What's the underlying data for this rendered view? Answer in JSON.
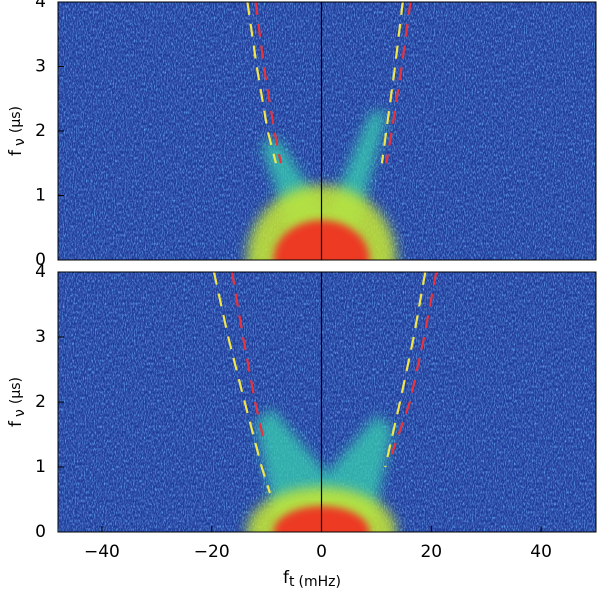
{
  "chart_data": [
    {
      "type": "line",
      "xlim": [
        -48,
        50
      ],
      "ylim": [
        0,
        4
      ],
      "yticks": [
        0,
        1,
        2,
        3,
        4
      ],
      "y_label": {
        "main": "f",
        "sub": "ν",
        "unit": "(μs)"
      },
      "series": [
        {
          "color": "#f2e64a",
          "x": [
            -13.5,
            -11.8,
            -9.8,
            -8.3
          ],
          "y": [
            4,
            3,
            2,
            1.5
          ]
        },
        {
          "color": "#e8323c",
          "x": [
            -12,
            -10.5,
            -8.6,
            -7.4
          ],
          "y": [
            4,
            3,
            2,
            1.5
          ]
        },
        {
          "color": "#f2e64a",
          "x": [
            14.8,
            13.4,
            11.8,
            11
          ],
          "y": [
            4,
            3,
            2,
            1.5
          ]
        },
        {
          "color": "#e8323c",
          "x": [
            16.2,
            14.6,
            12.8,
            11.8
          ],
          "y": [
            4,
            3,
            2,
            1.5
          ]
        }
      ]
    },
    {
      "type": "line",
      "xlim": [
        -48,
        50
      ],
      "ylim": [
        0,
        4
      ],
      "yticks": [
        0,
        1,
        2,
        3,
        4
      ],
      "xticks": [
        {
          "value": -40,
          "label": "−40"
        },
        {
          "value": -20,
          "label": "−20"
        },
        0,
        20,
        40
      ],
      "y_label": {
        "main": "f",
        "sub": "ν",
        "unit": "(μs)"
      },
      "x_label": {
        "main": "f",
        "sub": "t",
        "unit": "(mHz)"
      },
      "series": [
        {
          "color": "#f2e64a",
          "x": [
            -19.6,
            -17,
            -14,
            -10.9,
            -9.4
          ],
          "y": [
            4,
            3,
            2,
            1,
            0.6
          ]
        },
        {
          "color": "#e8323c",
          "x": [
            -16.3,
            -14.3,
            -12.1,
            -10.5
          ],
          "y": [
            4,
            3,
            2,
            1.4
          ]
        },
        {
          "color": "#f2e64a",
          "x": [
            18.9,
            16.8,
            14.3,
            11.6
          ],
          "y": [
            4,
            3,
            2,
            1
          ]
        },
        {
          "color": "#e8323c",
          "x": [
            20.9,
            18.7,
            16.1,
            12.8
          ],
          "y": [
            4,
            3,
            2,
            1.2
          ]
        }
      ]
    }
  ]
}
